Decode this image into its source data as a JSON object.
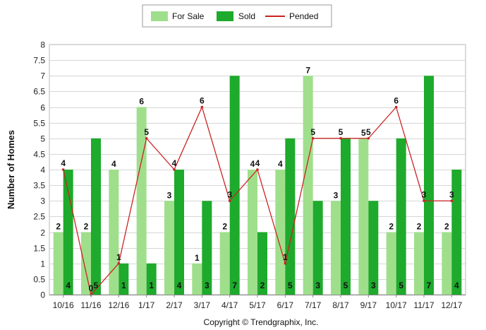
{
  "chart_data": {
    "type": "bar",
    "categories": [
      "10/16",
      "11/16",
      "12/16",
      "1/17",
      "2/17",
      "3/17",
      "4/17",
      "5/17",
      "6/17",
      "7/17",
      "8/17",
      "9/17",
      "10/17",
      "11/17",
      "12/17"
    ],
    "series": [
      {
        "name": "For Sale",
        "type": "bar",
        "color": "#9fdf8c",
        "values": [
          2,
          2,
          4,
          6,
          3,
          1,
          2,
          4,
          4,
          7,
          3,
          5,
          2,
          2,
          2
        ]
      },
      {
        "name": "Sold",
        "type": "bar",
        "color": "#1eaa2c",
        "values": [
          4,
          5,
          1,
          1,
          4,
          3,
          7,
          2,
          5,
          3,
          5,
          3,
          5,
          7,
          4
        ]
      },
      {
        "name": "Pended",
        "type": "line",
        "color": "#cc2222",
        "values": [
          4,
          0,
          1,
          5,
          4,
          6,
          3,
          4,
          1,
          5,
          5,
          5,
          6,
          3,
          3
        ]
      }
    ],
    "ylabel": "Number of Homes",
    "ylim": [
      0,
      8
    ],
    "yticks": [
      "0",
      "0.5",
      "1",
      "1.5",
      "2",
      "2.5",
      "3",
      "3.5",
      "4",
      "4.5",
      "5",
      "5.5",
      "6",
      "6.5",
      "7",
      "7.5",
      "8"
    ],
    "grid": true,
    "legend": "top-center"
  },
  "footer": {
    "copyright": "Copyright © Trendgraphix, Inc."
  }
}
